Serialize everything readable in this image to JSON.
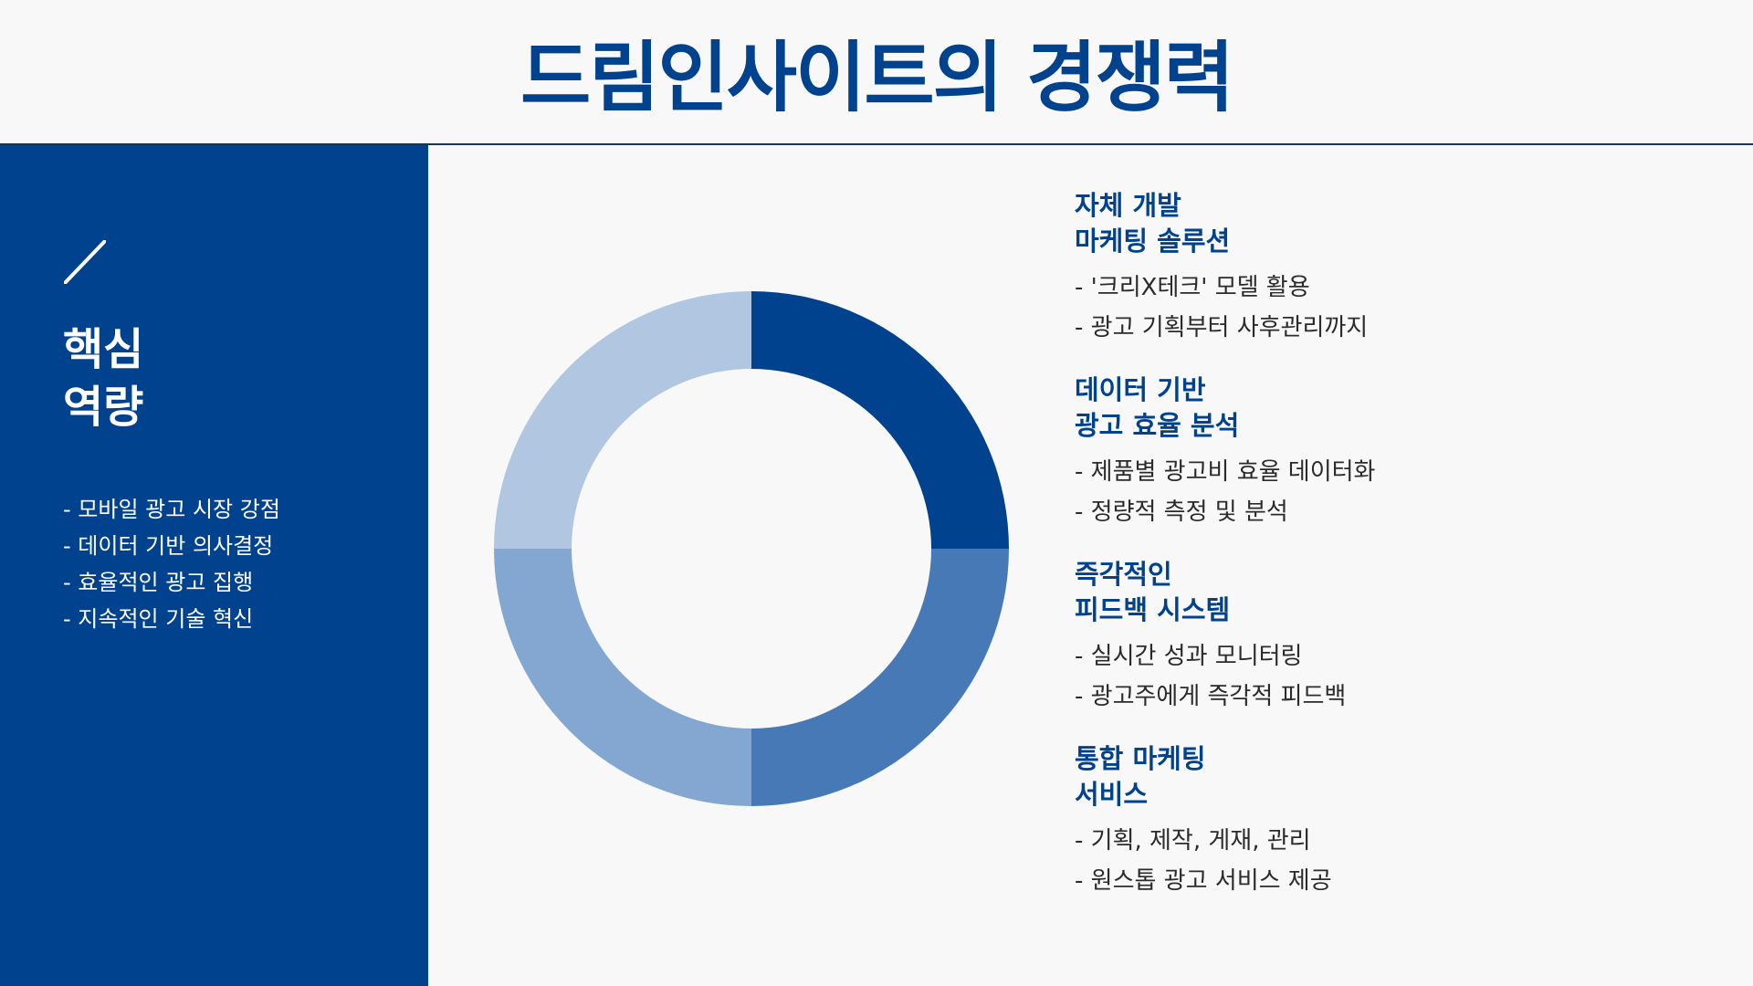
{
  "page": {
    "title": "드림인사이트의 경쟁력"
  },
  "sidebar": {
    "icon": "slash-icon",
    "heading": [
      "핵심",
      "역량"
    ],
    "items": [
      "- 모바일 광고 시장 강점",
      "- 데이터 기반 의사결정",
      "- 효율적인 광고 집행",
      "- 지속적인 기술 혁신"
    ]
  },
  "donut": {
    "segments": [
      {
        "value": 25,
        "color": "#01428f"
      },
      {
        "value": 25,
        "color": "#4679b5"
      },
      {
        "value": 25,
        "color": "#84a7d1"
      },
      {
        "value": 25,
        "color": "#b0c6e1"
      }
    ]
  },
  "features": [
    {
      "title": [
        "자체 개발",
        "마케팅 솔루션"
      ],
      "points": [
        "- '크리X테크' 모델 활용",
        "- 광고 기획부터 사후관리까지"
      ]
    },
    {
      "title": [
        "데이터 기반",
        "광고 효율 분석"
      ],
      "points": [
        "- 제품별 광고비 효율 데이터화",
        "- 정량적 측정 및 분석"
      ]
    },
    {
      "title": [
        "즉각적인",
        "피드백 시스템"
      ],
      "points": [
        "- 실시간 성과 모니터링",
        "- 광고주에게 즉각적 피드백"
      ]
    },
    {
      "title": [
        "통합 마케팅",
        "서비스"
      ],
      "points": [
        "- 기획, 제작, 게재, 관리",
        "- 원스톱 광고 서비스 제공"
      ]
    }
  ]
}
